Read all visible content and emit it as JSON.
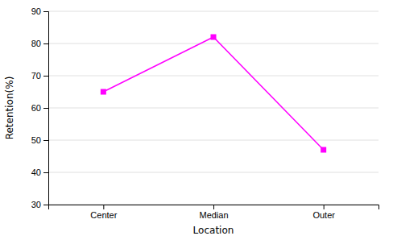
{
  "chart_data": {
    "type": "line",
    "categories": [
      "Center",
      "Median",
      "Outer"
    ],
    "values": [
      65,
      82,
      47
    ],
    "color": "#FF00FF",
    "marker": "square",
    "xlabel": "Location",
    "ylabel": "Retention(%)",
    "ylim": [
      30,
      90
    ],
    "yticks": [
      30,
      40,
      50,
      60,
      70,
      80,
      90
    ],
    "grid": true
  }
}
